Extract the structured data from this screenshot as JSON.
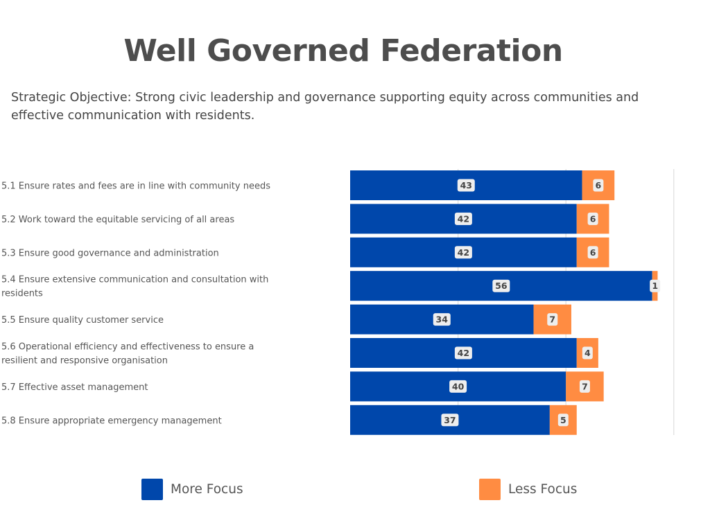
{
  "title": "Well Governed Federation",
  "subtitle": "Strategic Objective: Strong civic leadership and governance supporting equity across communities and effective communication with residents.",
  "colors": {
    "more_focus": "#0047ab",
    "less_focus": "#ff8c42",
    "title": "#4d4d4d",
    "grid": "#dddddd",
    "label_text": "#555555",
    "value_badge_bg": "#eeeeee",
    "value_badge_text": "#444444"
  },
  "chart_data": {
    "type": "bar",
    "orientation": "horizontal",
    "stacked": true,
    "categories": [
      "5.1 Ensure rates and fees are in line with community needs",
      "5.2 Work toward the equitable servicing of all areas",
      "5.3 Ensure good governance and administration",
      "5.4 Ensure extensive communication and consultation with residents",
      "5.5 Ensure quality customer service",
      "5.6 Operational efficiency and effectiveness to ensure a resilient and responsive organisation",
      "5.7 Effective asset management",
      "5.8 Ensure appropriate emergency management"
    ],
    "series": [
      {
        "name": "More Focus",
        "values": [
          43,
          42,
          42,
          56,
          34,
          42,
          40,
          37
        ]
      },
      {
        "name": "Less Focus",
        "values": [
          6,
          6,
          6,
          1,
          7,
          4,
          7,
          5
        ]
      }
    ],
    "xlim": [
      0,
      60
    ],
    "grid": true,
    "data_labels": true,
    "legend_position": "bottom"
  }
}
